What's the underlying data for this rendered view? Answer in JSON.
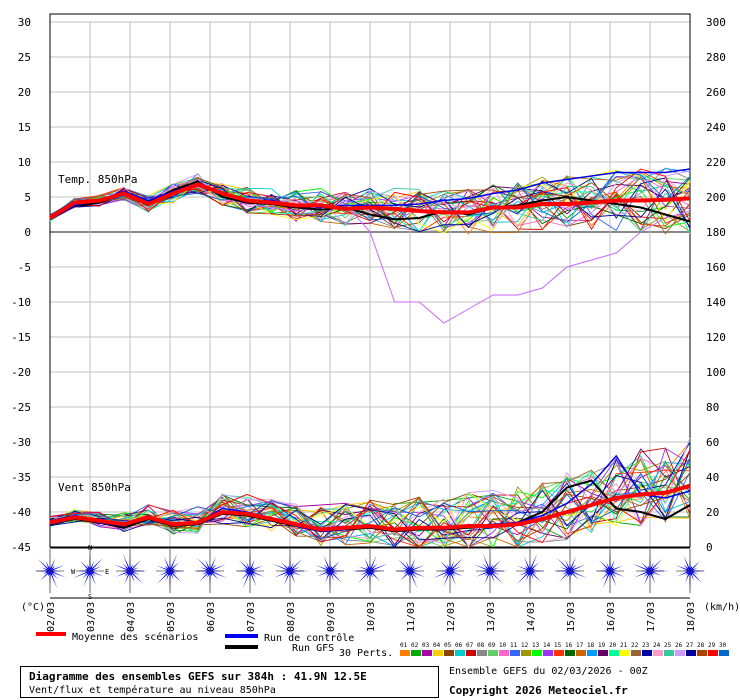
{
  "chart_data": {
    "type": "line",
    "dates": [
      "02/03",
      "03/03",
      "04/03",
      "05/03",
      "06/03",
      "07/03",
      "08/03",
      "09/03",
      "10/03",
      "11/03",
      "12/03",
      "13/03",
      "14/03",
      "15/03",
      "16/03",
      "17/03",
      "18/03"
    ],
    "temp_panel": {
      "label": "Temp. 850hPa",
      "y_ticks": [
        30,
        25,
        20,
        15,
        10,
        5,
        0,
        -5,
        -10,
        -15,
        -20,
        -25,
        -30,
        -35,
        -40,
        -45
      ],
      "ylim": [
        -45,
        30
      ],
      "unit": "(°C)",
      "mean_series": [
        2,
        4.2,
        4.5,
        5.5,
        4,
        5.5,
        6.8,
        5.5,
        4.5,
        4.2,
        3.8,
        3.8,
        3.3,
        3.5,
        3.3,
        3,
        2.8,
        2.8,
        3.5,
        3.5,
        4,
        4,
        4.2,
        4.5,
        4.5,
        4.6,
        4.8
      ],
      "control_series": [
        2,
        3.8,
        4.5,
        5.8,
        4.5,
        5.8,
        7,
        5.3,
        4.5,
        4.5,
        3.8,
        3.5,
        3.8,
        3.8,
        3.8,
        4,
        4.5,
        4.8,
        5.5,
        6,
        7,
        7.5,
        8,
        8.5,
        8.5,
        8.5,
        9
      ],
      "gfs_series": [
        2,
        3.7,
        4.2,
        5.5,
        4.2,
        6,
        7.2,
        5,
        4.2,
        4,
        3.5,
        3.2,
        3.5,
        2.5,
        1.8,
        2,
        3,
        2.5,
        3.5,
        3.8,
        4.5,
        5,
        4.5,
        4,
        3.5,
        2.5,
        1.5
      ],
      "outlier_series": [
        2,
        3.5,
        4.5,
        5.5,
        4.5,
        6.5,
        7.5,
        5,
        4,
        3.5,
        3,
        3.5,
        4,
        0,
        -10,
        -10,
        -13,
        -11,
        -9,
        -9,
        -8,
        -5,
        -4,
        -3,
        0,
        2,
        3
      ]
    },
    "wind_panel": {
      "label": "Vent 850hPa",
      "y_ticks_right": [
        300,
        280,
        260,
        240,
        220,
        200,
        180,
        160,
        140,
        120,
        100,
        80,
        60,
        40,
        20,
        0
      ],
      "wind_ticks": [
        100,
        80,
        60,
        40,
        20,
        0
      ],
      "ylim": [
        0,
        100
      ],
      "unit": "(km/h)",
      "mean_series": [
        14,
        17,
        15,
        13,
        17,
        13,
        14,
        20,
        19,
        16,
        13,
        10,
        11,
        12,
        10,
        11,
        11,
        12,
        12,
        13,
        16,
        20,
        24,
        28,
        30,
        31,
        35
      ],
      "control_series": [
        15,
        18,
        14,
        12,
        18,
        12,
        14,
        22,
        20,
        16,
        12,
        9,
        10,
        12,
        10,
        11,
        10,
        12,
        13,
        14,
        18,
        25,
        36,
        52,
        30,
        28,
        32
      ],
      "gfs_series": [
        13,
        16,
        14,
        11,
        16,
        12,
        13,
        19,
        18,
        15,
        12,
        9,
        10,
        11,
        9,
        10,
        10,
        11,
        12,
        14,
        20,
        34,
        38,
        22,
        20,
        16,
        24
      ]
    },
    "wind_roses_count": 17,
    "compass": [
      "N",
      "W",
      "E",
      "S"
    ],
    "legend": {
      "mean": "Moyenne des scénarios",
      "control": "Run de contrôle",
      "gfs": "Run GFS",
      "perts": "30 Perts.",
      "pert_codes": [
        "01",
        "02",
        "03",
        "04",
        "05",
        "06",
        "07",
        "08",
        "09",
        "10",
        "11",
        "12",
        "13",
        "14",
        "15",
        "16",
        "17",
        "18",
        "19",
        "20",
        "21",
        "22",
        "23",
        "24",
        "25",
        "26",
        "27",
        "28",
        "29",
        "30"
      ]
    },
    "colors": {
      "mean": "#ff0000",
      "control": "#0000ee",
      "gfs": "#000000",
      "grid": "#c0c0c0",
      "rose": "#0000ff",
      "perts": [
        "#ff8000",
        "#00aa00",
        "#aa00aa",
        "#ffcc00",
        "#884400",
        "#00cccc",
        "#cc0000",
        "#888888",
        "#66cc66",
        "#ff66cc",
        "#3366ff",
        "#999900",
        "#00ff00",
        "#9933ff",
        "#ff3300",
        "#006600",
        "#cc6600",
        "#0099ff",
        "#660066",
        "#00ff99",
        "#ffff00",
        "#996633",
        "#0000aa",
        "#ff99cc",
        "#33cc99",
        "#cc99ff",
        "#000099",
        "#aa4400",
        "#ff0000",
        "#0066cc"
      ]
    }
  },
  "footer": {
    "title": "Diagramme des ensembles GEFS sur 384h : 41.9N 12.5E",
    "subtitle": "Vent/flux et température au niveau 850hPa",
    "run": "Ensemble GEFS du 02/03/2026 - 00Z",
    "copyright": "Copyright 2026 Meteociel.fr"
  }
}
